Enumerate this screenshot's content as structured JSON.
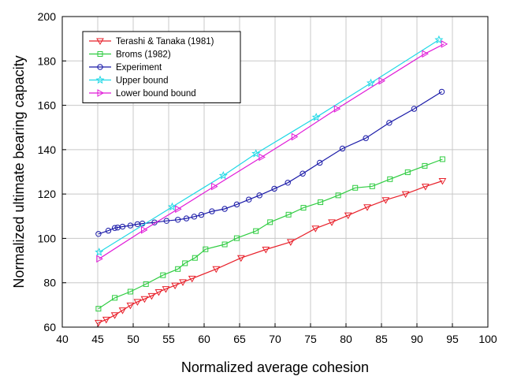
{
  "chart_data": {
    "type": "line",
    "xlabel": "Normalized average cohesion",
    "ylabel": "Normalized ultimate bearing capacity",
    "xlim": [
      40,
      100
    ],
    "ylim": [
      60,
      200
    ],
    "xticks": [
      40,
      45,
      50,
      55,
      60,
      65,
      70,
      75,
      80,
      85,
      90,
      95,
      100
    ],
    "yticks": [
      60,
      80,
      100,
      120,
      140,
      160,
      180,
      200
    ],
    "grid": true,
    "legend_position": "top-left",
    "series": [
      {
        "name": "Terashi & Tanaka (1981)",
        "color": "#e8202a",
        "marker": "triangle-down",
        "x": [
          45.1,
          46.2,
          47.4,
          48.5,
          49.6,
          50.6,
          51.6,
          52.6,
          53.6,
          54.6,
          55.9,
          57.0,
          58.3,
          61.7,
          65.2,
          68.7,
          72.2,
          75.7,
          78.0,
          80.3,
          83.0,
          85.6,
          88.4,
          91.2,
          93.6
        ],
        "y": [
          62.0,
          63.4,
          65.4,
          67.6,
          69.8,
          71.4,
          72.7,
          74.1,
          75.8,
          77.2,
          78.8,
          80.3,
          81.9,
          86.2,
          91.2,
          95.0,
          98.4,
          104.5,
          107.3,
          110.4,
          114.1,
          117.3,
          120.0,
          123.4,
          125.9
        ]
      },
      {
        "name": "Broms (1982)",
        "color": "#2ecc40",
        "marker": "square",
        "x": [
          45.1,
          47.4,
          49.6,
          51.8,
          54.2,
          56.3,
          57.3,
          58.7,
          60.2,
          62.9,
          64.6,
          67.3,
          69.3,
          71.9,
          74.0,
          76.4,
          78.9,
          81.3,
          83.7,
          86.2,
          88.7,
          91.1,
          93.6
        ],
        "y": [
          68.3,
          73.2,
          76.0,
          79.4,
          83.4,
          86.2,
          88.8,
          91.2,
          95.1,
          97.3,
          100.1,
          103.3,
          107.3,
          110.7,
          113.8,
          116.3,
          119.4,
          122.8,
          123.5,
          126.7,
          129.8,
          132.7,
          135.7
        ]
      },
      {
        "name": "Experiment",
        "color": "#1a1aa8",
        "marker": "circle",
        "x": [
          45.1,
          46.5,
          47.4,
          47.8,
          48.5,
          49.6,
          50.6,
          51.3,
          53.0,
          54.7,
          56.3,
          57.5,
          58.6,
          59.6,
          61.1,
          62.9,
          64.6,
          66.3,
          67.8,
          69.9,
          71.8,
          73.9,
          76.3,
          79.5,
          82.8,
          86.1,
          89.6,
          93.5
        ],
        "y": [
          102.0,
          103.5,
          104.7,
          104.9,
          105.3,
          105.8,
          106.4,
          106.7,
          107.2,
          107.9,
          108.4,
          109.0,
          109.8,
          110.6,
          112.2,
          113.3,
          115.3,
          117.5,
          119.4,
          122.4,
          125.1,
          129.2,
          134.1,
          140.5,
          145.2,
          152.1,
          158.4,
          166.1
        ]
      },
      {
        "name": "Upper bound",
        "color": "#1fd8e6",
        "marker": "star",
        "x": [
          45.2,
          55.5,
          62.7,
          67.3,
          75.8,
          83.5,
          93.1
        ],
        "y": [
          93.8,
          114.2,
          128.3,
          138.2,
          154.6,
          170.0,
          189.5
        ]
      },
      {
        "name": "Lower bound bound",
        "color": "#e01ad8",
        "marker": "triangle-right",
        "x": [
          45.2,
          51.5,
          56.3,
          61.4,
          68.1,
          72.7,
          78.7,
          85.0,
          91.1,
          93.8
        ],
        "y": [
          90.8,
          103.8,
          113.2,
          123.4,
          136.6,
          145.8,
          158.4,
          171.0,
          183.2,
          187.6
        ]
      }
    ]
  }
}
